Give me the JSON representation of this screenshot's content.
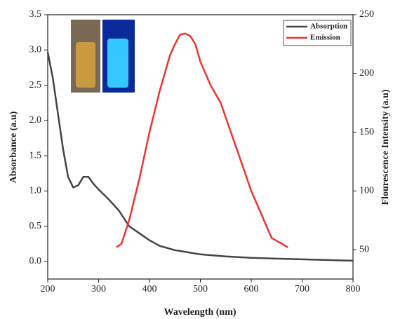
{
  "chart_data": {
    "type": "line",
    "x_label": "Wavelength (nm)",
    "y_label": "Absorbance (a.u)",
    "y2_label": "Flourescence Intensity (a.u)",
    "xlim": [
      200,
      800
    ],
    "xticks": [
      200,
      300,
      400,
      500,
      600,
      700,
      800
    ],
    "ylim": [
      -0.25,
      3.5
    ],
    "yticks": [
      {
        "value": 0,
        "label": "0.0"
      },
      0.5,
      {
        "value": 1,
        "label": "1.0"
      },
      1.5,
      {
        "value": 2,
        "label": "2.0"
      },
      2.5,
      {
        "value": 3,
        "label": "3.0"
      },
      3.5
    ],
    "y2lim": [
      25,
      250
    ],
    "y2ticks": [
      50,
      100,
      150,
      200,
      250
    ],
    "legend": "upper right",
    "series": [
      {
        "name": "Absorption",
        "color": "#444444",
        "x": [
          200,
          210,
          220,
          230,
          240,
          250,
          260,
          270,
          280,
          290,
          300,
          320,
          340,
          360,
          380,
          400,
          420,
          450,
          500,
          550,
          600,
          700,
          800
        ],
        "values": [
          2.97,
          2.6,
          2.1,
          1.6,
          1.2,
          1.05,
          1.08,
          1.2,
          1.2,
          1.1,
          1.02,
          0.88,
          0.72,
          0.5,
          0.4,
          0.3,
          0.22,
          0.16,
          0.1,
          0.07,
          0.05,
          0.03,
          0.01
        ]
      },
      {
        "name": "Emission",
        "color": "#ee3333",
        "axis": "y2",
        "x": [
          335,
          345,
          360,
          380,
          400,
          420,
          440,
          450,
          460,
          470,
          480,
          490,
          500,
          520,
          540,
          560,
          580,
          600,
          620,
          640,
          660,
          672
        ],
        "values": [
          52,
          55,
          75,
          110,
          150,
          185,
          215,
          225,
          233,
          234,
          232,
          225,
          210,
          190,
          175,
          150,
          125,
          100,
          80,
          60,
          55,
          52
        ]
      }
    ]
  }
}
